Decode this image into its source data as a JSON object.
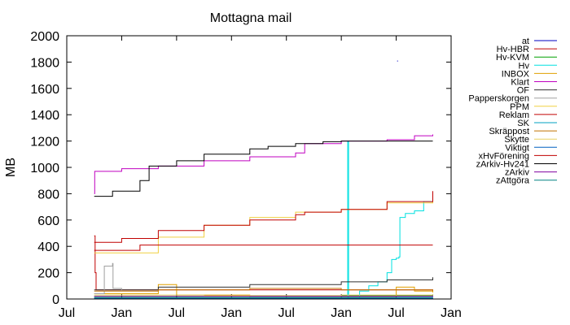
{
  "chart_data": {
    "type": "line",
    "title": "Mottagna mail",
    "ylabel": "MB",
    "xlabel": "",
    "ylim": [
      0,
      2000
    ],
    "y_ticks": [
      0,
      200,
      400,
      600,
      800,
      1000,
      1200,
      1400,
      1600,
      1800,
      2000
    ],
    "x_ticks": [
      "Jul",
      "Jan",
      "Jul",
      "Jan",
      "Jul",
      "Jan",
      "Jul",
      "Jan"
    ],
    "x_tick_positions": [
      0,
      6,
      12,
      18,
      24,
      30,
      36,
      42
    ],
    "xlim": [
      0,
      42
    ],
    "legend_position": "right",
    "grid": false,
    "series": [
      {
        "name": "at",
        "color": "#0000c0",
        "points": [
          [
            36.1,
            1808
          ],
          [
            36.2,
            1808
          ]
        ]
      },
      {
        "name": "Hv-HBR",
        "color": "#c00000",
        "points": [
          [
            3,
            480
          ],
          [
            3.1,
            200
          ],
          [
            3.2,
            70
          ],
          [
            40,
            60
          ]
        ]
      },
      {
        "name": "Hv-KVM",
        "color": "#00a000",
        "points": [
          [
            3,
            20
          ],
          [
            20,
            25
          ],
          [
            40,
            35
          ]
        ]
      },
      {
        "name": "Hv",
        "color": "#00e0e0",
        "points": [
          [
            3,
            5
          ],
          [
            30.7,
            5
          ],
          [
            30.7,
            1200
          ],
          [
            30.8,
            1200
          ],
          [
            30.8,
            5
          ],
          [
            31,
            10
          ],
          [
            32,
            60
          ],
          [
            33,
            100
          ],
          [
            34,
            130
          ],
          [
            35,
            200
          ],
          [
            35.5,
            300
          ],
          [
            36,
            310
          ],
          [
            36.3,
            320
          ],
          [
            36.4,
            620
          ],
          [
            37,
            650
          ],
          [
            38,
            670
          ],
          [
            39,
            740
          ],
          [
            40,
            800
          ]
        ]
      },
      {
        "name": "INBOX",
        "color": "#e0a000",
        "points": [
          [
            3,
            40
          ],
          [
            8,
            40
          ],
          [
            10,
            110
          ],
          [
            12,
            30
          ],
          [
            20,
            20
          ],
          [
            30,
            20
          ],
          [
            36,
            90
          ],
          [
            38,
            60
          ],
          [
            40,
            50
          ]
        ]
      },
      {
        "name": "Klart",
        "color": "#c000c0",
        "points": [
          [
            3,
            800
          ],
          [
            3.05,
            970
          ],
          [
            6,
            990
          ],
          [
            10,
            1010
          ],
          [
            15,
            1050
          ],
          [
            20,
            1080
          ],
          [
            25,
            1110
          ],
          [
            26,
            1180
          ],
          [
            30,
            1200
          ],
          [
            35,
            1210
          ],
          [
            38,
            1240
          ],
          [
            40,
            1250
          ]
        ]
      },
      {
        "name": "OF",
        "color": "#303030",
        "points": [
          [
            3,
            70
          ],
          [
            10,
            90
          ],
          [
            20,
            110
          ],
          [
            30,
            130
          ],
          [
            35,
            145
          ],
          [
            40,
            165
          ]
        ]
      },
      {
        "name": "Papperskorgen",
        "color": "#a0a0a0",
        "points": [
          [
            3,
            40
          ],
          [
            4,
            40
          ],
          [
            4.1,
            250
          ],
          [
            5,
            270
          ],
          [
            5.05,
            80
          ],
          [
            6,
            60
          ]
        ]
      },
      {
        "name": "PPM",
        "color": "#f0d040",
        "points": [
          [
            3,
            350
          ],
          [
            10,
            470
          ],
          [
            15,
            560
          ],
          [
            20,
            620
          ],
          [
            25,
            660
          ],
          [
            30,
            680
          ],
          [
            35,
            730
          ],
          [
            40,
            800
          ]
        ]
      },
      {
        "name": "Reklam",
        "color": "#c00000",
        "points": [
          [
            3,
            370
          ],
          [
            8,
            410
          ],
          [
            20,
            410
          ],
          [
            40,
            410
          ]
        ]
      },
      {
        "name": "SK",
        "color": "#00a0c0",
        "points": [
          [
            3,
            10
          ],
          [
            20,
            12
          ],
          [
            40,
            15
          ]
        ]
      },
      {
        "name": "Skräppost",
        "color": "#c07000",
        "points": [
          [
            3,
            60
          ],
          [
            10,
            70
          ],
          [
            20,
            80
          ],
          [
            30,
            70
          ],
          [
            40,
            60
          ]
        ]
      },
      {
        "name": "Skytte",
        "color": "#e8d060",
        "points": [
          [
            3,
            30
          ],
          [
            15,
            25
          ],
          [
            30,
            30
          ],
          [
            40,
            35
          ]
        ]
      },
      {
        "name": "Viktigt",
        "color": "#0060c0",
        "points": [
          [
            3,
            5
          ],
          [
            40,
            8
          ]
        ]
      },
      {
        "name": "xHvFörening",
        "color": "#c00000",
        "points": [
          [
            3,
            430
          ],
          [
            6,
            460
          ],
          [
            10,
            520
          ],
          [
            15,
            560
          ],
          [
            20,
            600
          ],
          [
            25,
            640
          ],
          [
            26,
            660
          ],
          [
            30,
            680
          ],
          [
            35,
            740
          ],
          [
            40,
            820
          ]
        ]
      },
      {
        "name": "zArkiv-Hv241",
        "color": "#000000",
        "points": [
          [
            3,
            780
          ],
          [
            5,
            820
          ],
          [
            8,
            900
          ],
          [
            9,
            1010
          ],
          [
            12,
            1050
          ],
          [
            15,
            1100
          ],
          [
            20,
            1140
          ],
          [
            22,
            1160
          ],
          [
            25,
            1180
          ],
          [
            28,
            1195
          ],
          [
            30,
            1200
          ],
          [
            40,
            1200
          ]
        ]
      },
      {
        "name": "zArkiv",
        "color": "#8000a0",
        "points": [
          [
            3,
            20
          ],
          [
            40,
            25
          ]
        ]
      },
      {
        "name": "zAttgöra",
        "color": "#008080",
        "points": [
          [
            3,
            10
          ],
          [
            40,
            10
          ]
        ]
      }
    ]
  }
}
